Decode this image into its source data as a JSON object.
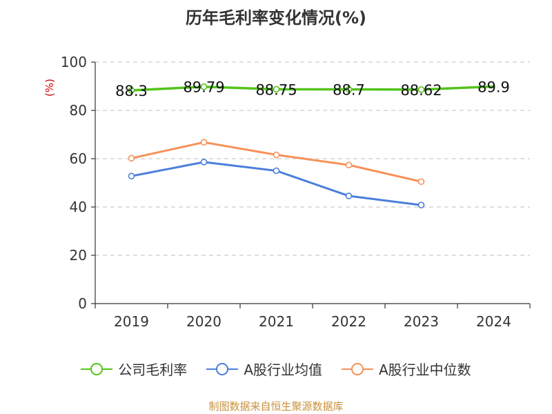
{
  "chart_data": {
    "type": "line",
    "title": "历年毛利率变化情况(%)",
    "ylabel": "(%)",
    "xlabel": "",
    "categories": [
      "2019",
      "2020",
      "2021",
      "2022",
      "2023",
      "2024"
    ],
    "ylim": [
      0,
      100
    ],
    "yticks": [
      0,
      20,
      40,
      60,
      80,
      100
    ],
    "grid": "horizontal-dashed",
    "legend_position": "bottom",
    "series": [
      {
        "name": "公司毛利率",
        "color": "#52c41a",
        "values": [
          88.3,
          89.79,
          88.75,
          88.7,
          88.62,
          89.9
        ],
        "data_labels": [
          "88.3",
          "89.79",
          "88.75",
          "88.7",
          "88.62",
          "89.9"
        ],
        "markers": [
          true,
          true,
          true,
          true,
          true,
          false
        ]
      },
      {
        "name": "A股行业均值",
        "color": "#4a7fdb",
        "values": [
          52.8,
          58.6,
          55.0,
          44.6,
          40.8,
          null
        ],
        "markers": [
          true,
          true,
          true,
          true,
          true,
          false
        ]
      },
      {
        "name": "A股行业中位数",
        "color": "#f79158",
        "values": [
          60.2,
          66.8,
          61.6,
          57.4,
          50.5,
          null
        ],
        "markers": [
          true,
          true,
          true,
          true,
          true,
          false
        ]
      }
    ]
  },
  "legend": {
    "items": [
      "公司毛利率",
      "A股行业均值",
      "A股行业中位数"
    ]
  },
  "source": "制图数据来自恒生聚源数据库"
}
